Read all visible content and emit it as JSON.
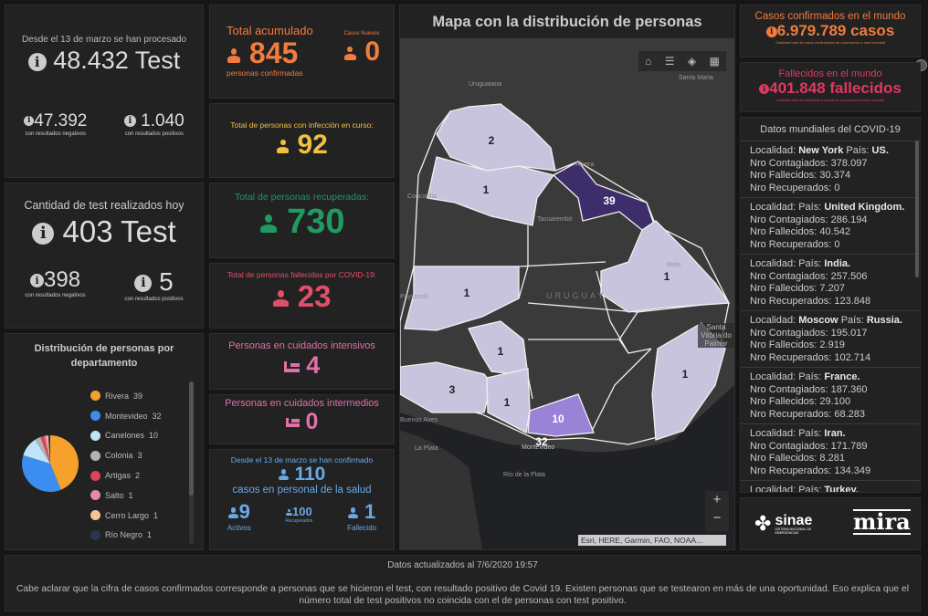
{
  "tests": {
    "intro": "Desde el 13 de marzo se han procesado",
    "total": "48.432 Test",
    "neg": "47.392",
    "neg_label": "con resultados negativos",
    "pos": "1.040",
    "pos_label": "con resultados positivos"
  },
  "today": {
    "title": "Cantidad de test realizados hoy",
    "total": "403 Test",
    "neg": "398",
    "neg_label": "con resultados negativos",
    "pos": "5",
    "pos_label": "con resultados positivos"
  },
  "pie": {
    "title": "Distribución de personas por departamento",
    "chart_data": {
      "type": "pie",
      "categories": [
        "Rivera",
        "Montevideo",
        "Canelones",
        "Colonia",
        "Artigas",
        "Salto",
        "Cerro Largo",
        "Río Negro"
      ],
      "values": [
        39,
        32,
        10,
        3,
        2,
        1,
        1,
        1
      ],
      "colors": [
        "#f5a12c",
        "#3b8ef0",
        "#bfe3f7",
        "#b3b3b3",
        "#d9445a",
        "#e58aa0",
        "#f7c48f",
        "#2b3550"
      ]
    }
  },
  "confirmed": {
    "title": "Total acumulado",
    "value": "845",
    "label": "personas confirmadas",
    "new_title": "Casos Nuevos",
    "new_value": "0",
    "color": "#f07c3e"
  },
  "active": {
    "title": "Total de personas con infección en curso:",
    "value": "92",
    "color": "#f0c040"
  },
  "recovered": {
    "title": "Total de personas recuperadas:",
    "value": "730",
    "color": "#1f9a60"
  },
  "deaths": {
    "title": "Total de personas fallecidas por COVID-19:",
    "value": "23",
    "color": "#e0506a"
  },
  "icu": {
    "title": "Personas en cuidados intensivos",
    "value": "4",
    "color": "#e070a8"
  },
  "intermediate": {
    "title": "Personas en cuidados intermedios",
    "value": "0",
    "color": "#e070a8"
  },
  "health": {
    "intro": "Desde el 13 de marzo se han confirmado",
    "value": "110",
    "label": "casos en personal de la salud",
    "active": "9",
    "active_label": "Activos",
    "recovered": "100",
    "recovered_label": "Recuperados",
    "dead": "1",
    "dead_label": "Fallecido",
    "color": "#6aa8e8"
  },
  "map": {
    "title": "Mapa con la distribución de personas",
    "places": [
      "Uruguaiana",
      "Santa Maria",
      "Rivera",
      "Concordia",
      "Tacuarembó",
      "Melo",
      "URUGUAY",
      "Paysandú",
      "Santa Vitória do Palmar",
      "Buenos Aires",
      "La Plata",
      "Montevideo",
      "Río de la Plata"
    ],
    "counts": {
      "artigas": "2",
      "salto": "1",
      "rivera": "39",
      "cerro_largo": "1",
      "rio_negro": "1",
      "soriano": "1",
      "colonia": "3",
      "san_jose": "1",
      "canelones": "10",
      "montevideo": "32",
      "rocha": "1"
    },
    "attribution": "Esri, HERE, Garmin, FAO, NOAA...",
    "zoom_in": "+",
    "zoom_out": "−"
  },
  "world": {
    "cases_title": "Casos confirmados en el mundo",
    "cases": "6.979.789 casos",
    "cases_note": "Cantidad total de casos confirmados de coronavirus a nivel mundial",
    "deaths_title": "Fallecidos en el mundo",
    "deaths": "401.848 fallecidos",
    "deaths_note": "Cantidad total de fallecidos a causa de coronavirus a nivel mundial"
  },
  "list": {
    "title": "Datos mundiales del COVID-19",
    "items": [
      {
        "loc": "New York",
        "pais": "US.",
        "c": "378.097",
        "f": "30.374",
        "r": "0"
      },
      {
        "loc": "",
        "pais": "United Kingdom.",
        "c": "286.194",
        "f": "40.542",
        "r": "0"
      },
      {
        "loc": "",
        "pais": "India.",
        "c": "257.506",
        "f": "7.207",
        "r": "123.848"
      },
      {
        "loc": "Moscow",
        "pais": "Russia.",
        "c": "195.017",
        "f": "2.919",
        "r": "102.714"
      },
      {
        "loc": "",
        "pais": "France.",
        "c": "187.360",
        "f": "29.100",
        "r": "68.283"
      },
      {
        "loc": "",
        "pais": "Iran.",
        "c": "171.789",
        "f": "8.281",
        "r": "134.349"
      },
      {
        "loc": "",
        "pais": "Turkey.",
        "c": "",
        "f": "",
        "r": ""
      }
    ],
    "l_loc": "Localidad:",
    "l_pais": "País:",
    "l_c": "Nro Contagiados:",
    "l_f": "Nro Fallecidos:",
    "l_r": "Nro Recuperados:"
  },
  "logos": {
    "sinae": "sinae",
    "sinae_sub": "SISTEMA NACIONAL DE EMERGENCIAS",
    "mira": "mira"
  },
  "footer": {
    "updated": "Datos actualizados al 7/6/2020 19:57",
    "note": "Cabe aclarar que la cifra de casos confirmados corresponde a personas que se hicieron el test, con resultado positivo de Covid 19. Existen personas que se testearon en más de una oportunidad. Eso explica que el número total de test positivos no coincida con el de personas con test positivo."
  }
}
